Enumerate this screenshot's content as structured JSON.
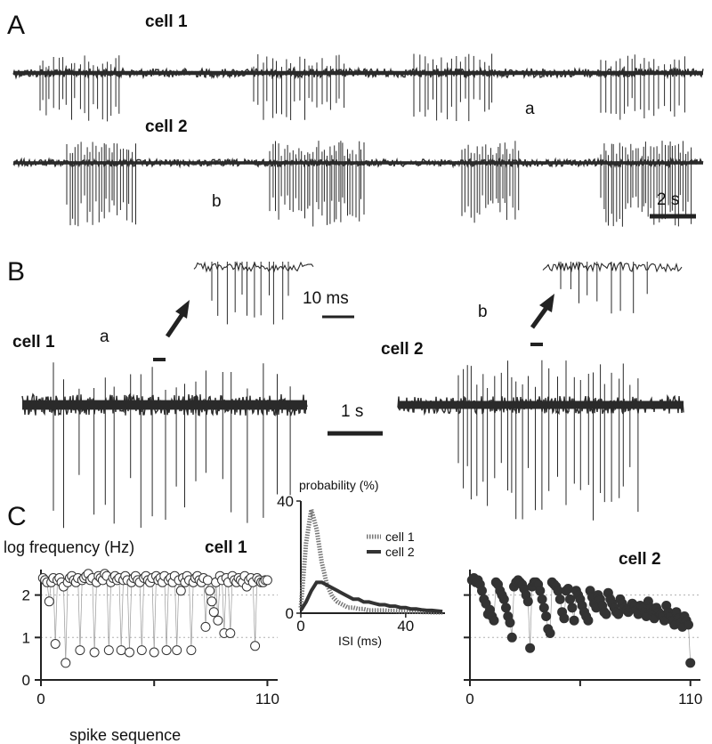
{
  "colors": {
    "trace": "#2a2a2a",
    "marker_fill": "#ffffff",
    "filled_marker": "#333333",
    "grid": "#b0b0b0"
  },
  "panels": {
    "A": {
      "letter": "A",
      "cell1_label": "cell 1",
      "cell2_label": "cell 2",
      "mark_a": "a",
      "mark_b": "b",
      "scale_bar": "2 s",
      "cell1_bursts_s": [
        [
          0.5,
          2.0
        ],
        [
          4.5,
          6.2
        ],
        [
          7.5,
          9.0
        ],
        [
          11.0,
          12.6
        ]
      ],
      "cell2_bursts_s": [
        [
          1.0,
          2.3
        ],
        [
          4.8,
          6.6
        ],
        [
          8.4,
          9.5
        ],
        [
          11.0,
          12.7
        ]
      ]
    },
    "B": {
      "letter": "B",
      "cell1_label": "cell 1",
      "cell2_label": "cell 2",
      "mark_a": "a",
      "mark_b": "b",
      "scale_bar": "1 s",
      "inset_scale_bar": "10 ms"
    },
    "C": {
      "letter": "C",
      "ylabel": "log frequency (Hz)",
      "cell1_label": "cell 1",
      "cell2_label": "cell 2",
      "xlabel": "spike sequence",
      "inset_ylabel": "probability (%)",
      "inset_xlabel": "ISI (ms)",
      "inset_legend": [
        "cell 1",
        "cell 2"
      ]
    }
  },
  "chart_data": [
    {
      "type": "scatter",
      "name_on_chart": "cell 1",
      "xlabel": "spike sequence",
      "ylabel": "log frequency (Hz)",
      "xlim": [
        0,
        115
      ],
      "ylim": [
        0,
        2.6
      ],
      "xticks": [
        0,
        110
      ],
      "xtick_labels": [
        "0",
        "110"
      ],
      "yticks": [
        0,
        1,
        2
      ],
      "ytick_labels": [
        "0",
        "1",
        "2"
      ],
      "grid": true,
      "x": [
        1,
        2,
        3,
        4,
        5,
        6,
        7,
        8,
        9,
        10,
        11,
        12,
        13,
        14,
        15,
        16,
        17,
        18,
        19,
        20,
        21,
        22,
        23,
        24,
        25,
        26,
        27,
        28,
        29,
        30,
        31,
        32,
        33,
        34,
        35,
        36,
        37,
        38,
        39,
        40,
        41,
        42,
        43,
        44,
        45,
        46,
        47,
        48,
        49,
        50,
        51,
        52,
        53,
        54,
        55,
        56,
        57,
        58,
        59,
        60,
        61,
        62,
        63,
        64,
        65,
        66,
        67,
        68,
        69,
        70,
        71,
        72,
        73,
        74,
        75,
        76,
        77,
        78,
        79,
        80,
        81,
        82,
        83,
        84,
        85,
        86,
        87,
        88,
        89,
        90,
        91,
        92,
        93,
        94,
        95,
        96,
        97,
        98,
        99,
        100,
        101,
        102,
        103,
        104,
        105,
        106,
        107,
        108,
        109,
        110
      ],
      "y": [
        2.4,
        2.35,
        2.3,
        1.85,
        2.3,
        2.4,
        0.85,
        2.35,
        2.4,
        2.3,
        2.2,
        0.4,
        2.3,
        2.4,
        2.45,
        2.35,
        2.3,
        2.4,
        0.7,
        2.35,
        2.4,
        2.45,
        2.5,
        2.35,
        2.4,
        0.65,
        2.3,
        2.45,
        2.4,
        2.35,
        2.5,
        2.45,
        0.7,
        2.3,
        2.4,
        2.45,
        2.35,
        2.4,
        0.7,
        2.35,
        2.45,
        2.35,
        0.65,
        2.3,
        2.4,
        2.45,
        2.35,
        2.3,
        0.7,
        2.4,
        2.45,
        2.35,
        2.3,
        2.4,
        0.65,
        2.45,
        2.35,
        2.4,
        2.3,
        2.45,
        0.7,
        2.35,
        2.4,
        2.3,
        2.45,
        0.7,
        2.35,
        2.1,
        2.4,
        2.3,
        2.45,
        2.35,
        0.7,
        2.3,
        2.4,
        2.45,
        2.35,
        2.3,
        2.4,
        1.25,
        2.35,
        2.1,
        1.85,
        1.6,
        2.3,
        1.4,
        2.45,
        2.35,
        1.1,
        2.4,
        2.3,
        1.1,
        2.45,
        2.35,
        2.3,
        2.4,
        2.35,
        2.3,
        2.45,
        2.2,
        2.35,
        2.4,
        2.3,
        0.8,
        2.4,
        2.35,
        2.3,
        2.3,
        2.35,
        2.35
      ]
    },
    {
      "type": "scatter",
      "name_on_chart": "cell 2",
      "xlim": [
        0,
        115
      ],
      "ylim": [
        0,
        2.6
      ],
      "xticks": [
        0,
        110
      ],
      "xtick_labels": [
        "0",
        "110"
      ],
      "grid": true,
      "x": [
        1,
        2,
        3,
        4,
        5,
        6,
        7,
        8,
        9,
        10,
        11,
        12,
        13,
        14,
        15,
        16,
        17,
        18,
        19,
        20,
        21,
        22,
        23,
        24,
        25,
        26,
        27,
        28,
        29,
        30,
        31,
        32,
        33,
        34,
        35,
        36,
        37,
        38,
        39,
        40,
        41,
        42,
        43,
        44,
        45,
        46,
        47,
        48,
        49,
        50,
        51,
        52,
        53,
        54,
        55,
        56,
        57,
        58,
        59,
        60,
        61,
        62,
        63,
        64,
        65,
        66,
        67,
        68,
        69,
        70,
        71,
        72,
        73,
        74,
        75,
        76,
        77,
        78,
        79,
        80,
        81,
        82,
        83,
        84,
        85,
        86,
        87,
        88,
        89,
        90,
        91,
        92,
        93,
        94,
        95,
        96,
        97,
        98,
        99,
        100,
        101,
        102,
        103,
        104,
        105,
        106,
        107,
        108,
        109,
        110
      ],
      "y": [
        2.35,
        2.4,
        2.3,
        2.35,
        2.25,
        2.1,
        1.9,
        1.8,
        1.55,
        1.65,
        1.5,
        1.4,
        2.3,
        2.25,
        2.1,
        2.0,
        1.9,
        1.7,
        1.5,
        1.35,
        1.0,
        2.2,
        2.3,
        2.35,
        2.3,
        2.25,
        2.15,
        2.0,
        1.85,
        0.75,
        2.2,
        2.3,
        2.3,
        2.25,
        2.1,
        1.9,
        1.7,
        1.5,
        1.2,
        1.1,
        2.3,
        2.25,
        2.2,
        2.1,
        1.9,
        1.6,
        1.45,
        2.1,
        2.15,
        1.9,
        1.7,
        1.4,
        2.1,
        2.0,
        1.9,
        1.75,
        1.6,
        1.5,
        1.4,
        2.1,
        1.95,
        1.8,
        1.7,
        2.0,
        1.9,
        1.75,
        1.6,
        1.55,
        2.05,
        1.9,
        1.8,
        1.7,
        1.6,
        1.55,
        1.9,
        1.8,
        1.7,
        1.65,
        1.6,
        1.7,
        1.8,
        1.75,
        1.65,
        1.55,
        1.75,
        1.7,
        1.6,
        1.5,
        1.85,
        1.7,
        1.6,
        1.45,
        1.7,
        1.6,
        1.55,
        1.5,
        1.4,
        1.75,
        1.6,
        1.5,
        1.4,
        1.3,
        1.6,
        1.45,
        1.35,
        1.25,
        1.5,
        1.4,
        1.3,
        0.4
      ]
    },
    {
      "type": "line",
      "name_on_chart": "inset",
      "xlabel": "ISI (ms)",
      "ylabel": "probability (%)",
      "xlim": [
        0,
        55
      ],
      "ylim": [
        0,
        40
      ],
      "xticks": [
        0,
        40
      ],
      "xtick_labels": [
        "0",
        "40"
      ],
      "yticks": [
        0,
        40
      ],
      "ytick_labels": [
        "0",
        "40"
      ],
      "legend": "top-right",
      "x": [
        0,
        2,
        4,
        6,
        8,
        10,
        12,
        14,
        16,
        18,
        20,
        22,
        24,
        26,
        28,
        30,
        32,
        34,
        36,
        38,
        40,
        42,
        44,
        46,
        48,
        50,
        52,
        54
      ],
      "series": [
        {
          "name": "cell 1",
          "values": [
            2,
            25,
            37,
            30,
            18,
            10,
            6,
            4,
            3,
            2,
            2,
            1.5,
            1.5,
            1,
            1,
            1,
            1,
            0.8,
            0.8,
            0.6,
            0.6,
            0.5,
            0.5,
            0.4,
            0.4,
            0.3,
            0.3,
            0.3
          ]
        },
        {
          "name": "cell 2",
          "values": [
            1,
            4,
            8,
            11,
            11,
            10,
            9,
            8,
            7,
            6,
            5,
            5,
            4,
            4,
            3.5,
            3,
            3,
            2.5,
            2.5,
            2,
            2,
            1.5,
            1.5,
            1.2,
            1,
            1,
            0.8,
            0.6
          ]
        }
      ]
    }
  ]
}
